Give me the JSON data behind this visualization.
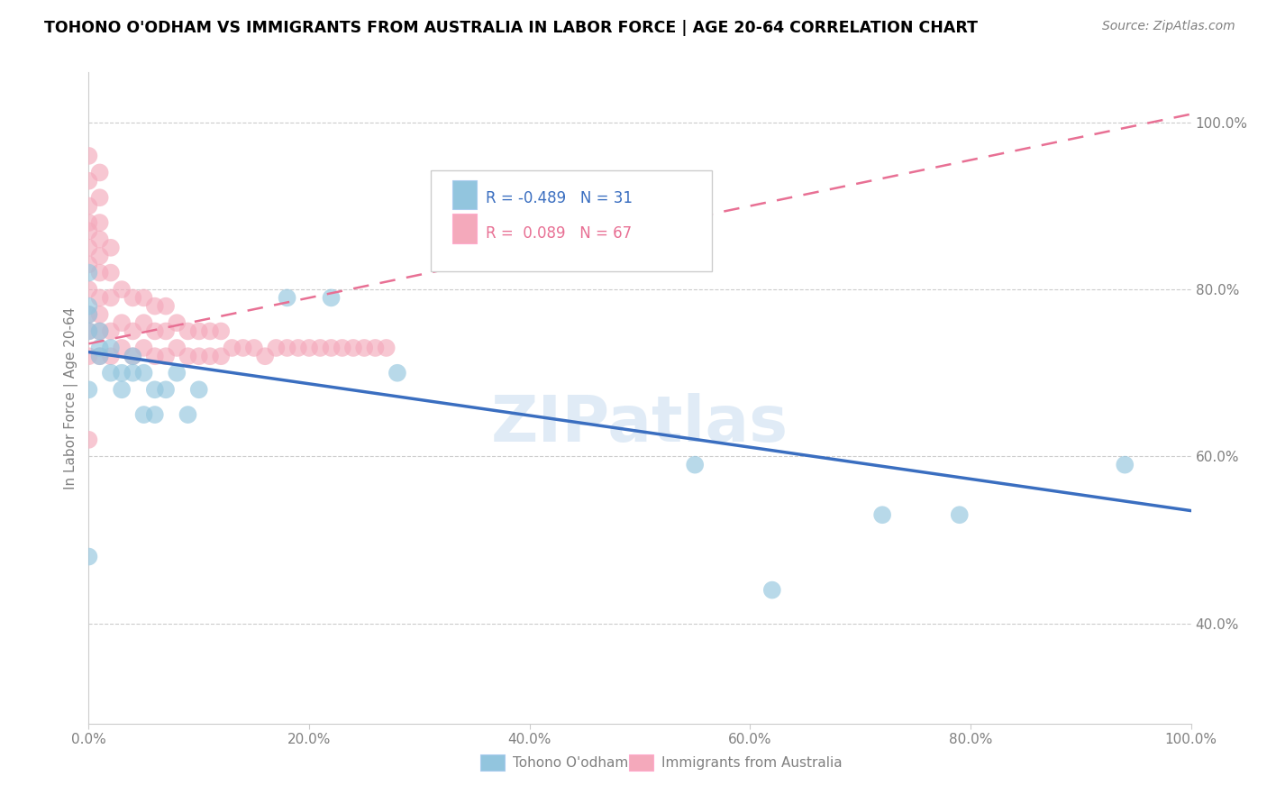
{
  "title": "TOHONO O'ODHAM VS IMMIGRANTS FROM AUSTRALIA IN LABOR FORCE | AGE 20-64 CORRELATION CHART",
  "source": "Source: ZipAtlas.com",
  "ylabel": "In Labor Force | Age 20-64",
  "xlim": [
    0.0,
    1.0
  ],
  "ylim": [
    0.28,
    1.06
  ],
  "x_tick_labels": [
    "0.0%",
    "20.0%",
    "40.0%",
    "60.0%",
    "80.0%",
    "100.0%"
  ],
  "x_tick_values": [
    0.0,
    0.2,
    0.4,
    0.6,
    0.8,
    1.0
  ],
  "y_tick_labels": [
    "40.0%",
    "60.0%",
    "80.0%",
    "100.0%"
  ],
  "y_tick_values": [
    0.4,
    0.6,
    0.8,
    1.0
  ],
  "r_blue": -0.489,
  "n_blue": 31,
  "r_pink": 0.089,
  "n_pink": 67,
  "blue_color": "#92C5DE",
  "pink_color": "#F4A9BB",
  "blue_line_color": "#3A6EC0",
  "pink_line_color": "#E87094",
  "watermark": "ZIPatlas",
  "blue_scatter_x": [
    0.0,
    0.0,
    0.0,
    0.0,
    0.0,
    0.0,
    0.01,
    0.01,
    0.01,
    0.02,
    0.02,
    0.03,
    0.03,
    0.04,
    0.04,
    0.05,
    0.05,
    0.06,
    0.06,
    0.07,
    0.08,
    0.09,
    0.1,
    0.18,
    0.22,
    0.28,
    0.55,
    0.62,
    0.72,
    0.79,
    0.94
  ],
  "blue_scatter_y": [
    0.48,
    0.68,
    0.75,
    0.77,
    0.78,
    0.82,
    0.72,
    0.73,
    0.75,
    0.7,
    0.73,
    0.68,
    0.7,
    0.7,
    0.72,
    0.65,
    0.7,
    0.65,
    0.68,
    0.68,
    0.7,
    0.65,
    0.68,
    0.79,
    0.79,
    0.7,
    0.59,
    0.44,
    0.53,
    0.53,
    0.59
  ],
  "pink_scatter_x": [
    0.0,
    0.0,
    0.0,
    0.0,
    0.0,
    0.0,
    0.0,
    0.0,
    0.0,
    0.0,
    0.0,
    0.0,
    0.01,
    0.01,
    0.01,
    0.01,
    0.01,
    0.01,
    0.01,
    0.01,
    0.01,
    0.01,
    0.02,
    0.02,
    0.02,
    0.02,
    0.02,
    0.03,
    0.03,
    0.03,
    0.04,
    0.04,
    0.04,
    0.05,
    0.05,
    0.05,
    0.06,
    0.06,
    0.06,
    0.07,
    0.07,
    0.07,
    0.08,
    0.08,
    0.09,
    0.09,
    0.1,
    0.1,
    0.11,
    0.11,
    0.12,
    0.12,
    0.13,
    0.14,
    0.15,
    0.16,
    0.17,
    0.18,
    0.19,
    0.2,
    0.21,
    0.22,
    0.23,
    0.24,
    0.25,
    0.26,
    0.27
  ],
  "pink_scatter_y": [
    0.62,
    0.72,
    0.75,
    0.77,
    0.8,
    0.83,
    0.85,
    0.87,
    0.88,
    0.9,
    0.93,
    0.96,
    0.72,
    0.75,
    0.77,
    0.79,
    0.82,
    0.84,
    0.86,
    0.88,
    0.91,
    0.94,
    0.72,
    0.75,
    0.79,
    0.82,
    0.85,
    0.73,
    0.76,
    0.8,
    0.72,
    0.75,
    0.79,
    0.73,
    0.76,
    0.79,
    0.72,
    0.75,
    0.78,
    0.72,
    0.75,
    0.78,
    0.73,
    0.76,
    0.72,
    0.75,
    0.72,
    0.75,
    0.72,
    0.75,
    0.72,
    0.75,
    0.73,
    0.73,
    0.73,
    0.72,
    0.73,
    0.73,
    0.73,
    0.73,
    0.73,
    0.73,
    0.73,
    0.73,
    0.73,
    0.73,
    0.73
  ],
  "blue_line_x0": 0.0,
  "blue_line_y0": 0.725,
  "blue_line_x1": 1.0,
  "blue_line_y1": 0.535,
  "pink_line_x0": 0.0,
  "pink_line_y0": 0.735,
  "pink_line_x1": 1.0,
  "pink_line_y1": 1.01
}
